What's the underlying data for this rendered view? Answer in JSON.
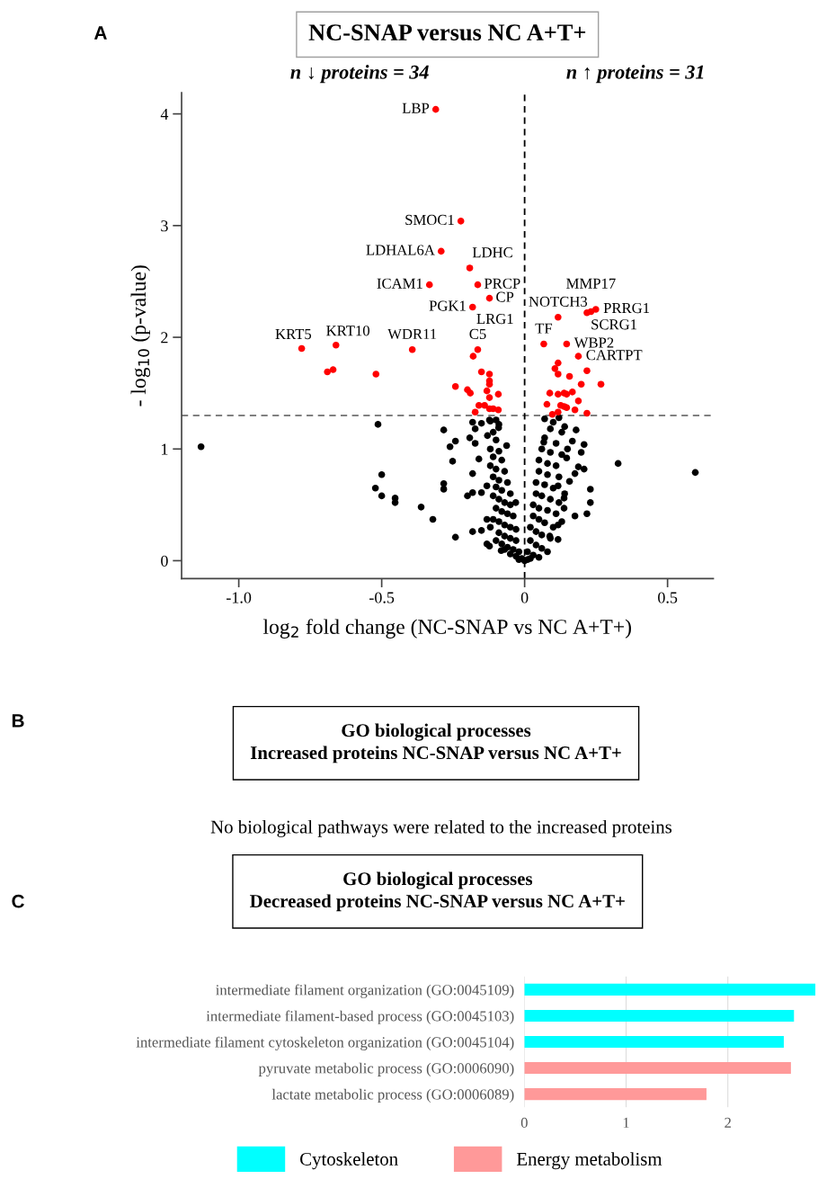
{
  "chart_data": [
    {
      "type": "scatter",
      "title": "NC-SNAP versus NC A+T+",
      "xlabel": "log$_{2}$ fold change (NC-SNAP vs NC A+T+)",
      "ylabel": "- log$_{10}$ (p-value)",
      "xlim": [
        -1.2,
        0.66
      ],
      "ylim": [
        -0.16,
        4.19
      ],
      "xticks": [
        {
          "value": -1,
          "label": "-1.0"
        },
        {
          "value": -0.5,
          "label": "-0.5"
        },
        0,
        0.5
      ],
      "yticks": [
        0,
        1,
        2,
        3,
        4
      ],
      "marker": "circle",
      "ref_lines": [
        {
          "axis": "y",
          "value": 1.3,
          "color": "#808080",
          "line_style": "dashed"
        },
        {
          "axis": "x",
          "value": 0,
          "color": "#000000",
          "line_style": "dashed"
        }
      ],
      "series": [
        {
          "color": "#000000",
          "x": [
            -1.132,
            -0.513,
            -0.5,
            -0.522,
            -0.5,
            -0.453,
            -0.453,
            -0.362,
            -0.321,
            -0.283,
            -0.261,
            -0.242,
            -0.252,
            -0.283,
            -0.283,
            -0.242,
            -0.182,
            -0.173,
            -0.192,
            -0.173,
            -0.16,
            -0.182,
            -0.2,
            -0.182,
            -0.151,
            -0.182,
            -0.151,
            -0.132,
            -0.123,
            -0.082,
            -0.063,
            -0.091,
            -0.123,
            -0.151,
            -0.132,
            -0.132,
            -0.031,
            0.327,
            0.597,
            0.23,
            0.23,
            0.218,
            0.176,
            0.117,
            0.088,
            0.208,
            0.198,
            0.208,
            0.176,
            0.188,
            0.18,
            0.167,
            0.067,
            0.147,
            0.138,
            0.138,
            0.157,
            0.117,
            0.117,
            -0.12,
            -0.1,
            -0.09,
            -0.11,
            -0.13,
            -0.1,
            -0.12,
            -0.09,
            -0.11,
            -0.08,
            -0.12,
            -0.1,
            -0.07,
            -0.11,
            -0.09,
            -0.06,
            -0.1,
            -0.08,
            -0.05,
            -0.11,
            -0.09,
            -0.07,
            -0.05,
            -0.1,
            -0.08,
            -0.06,
            -0.04,
            -0.11,
            -0.09,
            -0.07,
            -0.05,
            -0.03,
            -0.09,
            -0.07,
            -0.05,
            -0.03,
            -0.08,
            -0.06,
            -0.04,
            -0.02,
            -0.05,
            -0.03,
            -0.01,
            -0.02,
            0.0,
            -0.07,
            -0.1,
            -0.12,
            0.07,
            0.1,
            0.12,
            0.09,
            0.13,
            0.07,
            0.11,
            0.06,
            0.09,
            0.13,
            0.05,
            0.08,
            0.11,
            0.05,
            0.08,
            0.12,
            0.04,
            0.07,
            0.1,
            0.04,
            0.06,
            0.09,
            0.12,
            0.03,
            0.05,
            0.08,
            0.11,
            0.03,
            0.05,
            0.07,
            0.1,
            0.02,
            0.04,
            0.06,
            0.09,
            0.02,
            0.04,
            0.06,
            0.08,
            0.01,
            0.03,
            0.02,
            0.05,
            0.01,
            0.14,
            0.13,
            0.15,
            0.14
          ],
          "values": [
            1.02,
            1.22,
            0.77,
            0.65,
            0.58,
            0.56,
            0.52,
            0.48,
            0.37,
            1.17,
            1.02,
            1.07,
            0.89,
            0.69,
            0.64,
            0.21,
            1.24,
            1.18,
            1.1,
            1.05,
            0.91,
            0.78,
            0.58,
            0.61,
            0.61,
            0.26,
            0.27,
            0.15,
            0.13,
            0.09,
            1.03,
            1.19,
            1.26,
            1.23,
            0.67,
            0.37,
            0.52,
            0.87,
            0.79,
            0.64,
            0.52,
            0.42,
            0.4,
            0.19,
            0.22,
            1.04,
            0.97,
            0.82,
            0.78,
            0.84,
            1.17,
            1.07,
            1.06,
            0.92,
            0.56,
            0.47,
            0.71,
            0.67,
            0.32,
            1.25,
            1.26,
            1.22,
            1.15,
            1.12,
            1.08,
            1.0,
            0.98,
            0.93,
            0.9,
            0.85,
            0.82,
            0.8,
            0.75,
            0.72,
            0.7,
            0.66,
            0.63,
            0.6,
            0.58,
            0.55,
            0.52,
            0.5,
            0.47,
            0.44,
            0.42,
            0.4,
            0.37,
            0.35,
            0.32,
            0.3,
            0.28,
            0.25,
            0.22,
            0.2,
            0.18,
            0.15,
            0.12,
            0.1,
            0.08,
            0.06,
            0.04,
            0.02,
            0.01,
            0.0,
            0.1,
            0.18,
            0.3,
            1.27,
            1.24,
            1.28,
            1.18,
            1.15,
            1.1,
            1.05,
            1.0,
            0.97,
            0.95,
            0.9,
            0.87,
            0.85,
            0.8,
            0.77,
            0.75,
            0.7,
            0.68,
            0.65,
            0.6,
            0.58,
            0.55,
            0.52,
            0.5,
            0.47,
            0.45,
            0.42,
            0.4,
            0.37,
            0.34,
            0.3,
            0.3,
            0.26,
            0.23,
            0.2,
            0.18,
            0.14,
            0.11,
            0.08,
            0.08,
            0.05,
            0.02,
            0.03,
            0.01,
            0.6,
            0.35,
            1.0,
            1.2
          ]
        },
        {
          "color": "#ff0000",
          "x": [
            -0.311,
            -0.223,
            -0.292,
            -0.192,
            -0.164,
            -0.333,
            -0.123,
            -0.182,
            -0.78,
            -0.66,
            -0.393,
            -0.164,
            -0.18,
            -0.69,
            -0.67,
            -0.52,
            -0.151,
            -0.123,
            -0.123,
            -0.123,
            -0.242,
            -0.2,
            -0.19,
            -0.132,
            -0.092,
            -0.123,
            -0.16,
            -0.14,
            -0.123,
            -0.11,
            -0.092,
            -0.173,
            0.117,
            0.218,
            0.232,
            0.249,
            0.067,
            0.147,
            0.188,
            0.117,
            0.106,
            0.117,
            0.157,
            0.218,
            0.198,
            0.267,
            0.088,
            0.117,
            0.138,
            0.147,
            0.167,
            0.078,
            0.126,
            0.138,
            0.147,
            0.188,
            0.176,
            0.097,
            0.117,
            0.218
          ],
          "values": [
            4.04,
            3.04,
            2.77,
            2.62,
            2.47,
            2.47,
            2.35,
            2.27,
            1.9,
            1.93,
            1.89,
            1.89,
            1.83,
            1.69,
            1.71,
            1.67,
            1.69,
            1.67,
            1.61,
            1.58,
            1.56,
            1.53,
            1.5,
            1.52,
            1.49,
            1.46,
            1.39,
            1.39,
            1.36,
            1.36,
            1.35,
            1.33,
            2.18,
            2.22,
            2.23,
            2.25,
            1.94,
            1.94,
            1.83,
            1.77,
            1.72,
            1.67,
            1.65,
            1.7,
            1.58,
            1.58,
            1.5,
            1.49,
            1.5,
            1.49,
            1.51,
            1.4,
            1.39,
            1.38,
            1.37,
            1.43,
            1.35,
            1.31,
            1.33,
            1.32
          ]
        }
      ],
      "annotations": [
        "A",
        "n ↓ proteins = 34",
        "n ↑ proteins = 31",
        {
          "text": "LBP",
          "x": -0.311,
          "y": 4.04
        },
        {
          "text": "SMOC1",
          "x": -0.223,
          "y": 3.04
        },
        {
          "text": "LDHAL6A",
          "x": -0.292,
          "y": 2.77
        },
        {
          "text": "LDHC",
          "x": -0.192,
          "y": 2.62
        },
        {
          "text": "PRCP",
          "x": -0.164,
          "y": 2.47
        },
        {
          "text": "ICAM1",
          "x": -0.333,
          "y": 2.47
        },
        {
          "text": "CP",
          "x": -0.123,
          "y": 2.35
        },
        {
          "text": "PGK1",
          "x": -0.182,
          "y": 2.27
        },
        {
          "text": "LRG1",
          "x": -0.182,
          "y": 2.27
        },
        {
          "text": "KRT5",
          "x": -0.78,
          "y": 1.9
        },
        {
          "text": "KRT10",
          "x": -0.66,
          "y": 1.93
        },
        {
          "text": "WDR11",
          "x": -0.393,
          "y": 1.89
        },
        {
          "text": "C5",
          "x": -0.164,
          "y": 1.89
        },
        {
          "text": "NOTCH3",
          "x": 0.117,
          "y": 2.18
        },
        {
          "text": "MMP17",
          "x": 0.232,
          "y": 2.23
        },
        {
          "text": "PRRG1",
          "x": 0.249,
          "y": 2.25
        },
        {
          "text": "SCRG1",
          "x": 0.218,
          "y": 2.22
        },
        {
          "text": "TF",
          "x": 0.067,
          "y": 1.94
        },
        {
          "text": "WBP2",
          "x": 0.147,
          "y": 1.94
        },
        {
          "text": "CARTPT",
          "x": 0.188,
          "y": 1.83
        }
      ]
    },
    {
      "type": "other",
      "title": "GO biological processes\nIncreased proteins NC-SNAP versus NC A+T+",
      "annotations": [
        "B",
        "No biological pathways were related to the increased proteins"
      ]
    },
    {
      "type": "bar",
      "orientation": "horizontal",
      "title": "GO biological processes\nDecreased proteins NC-SNAP versus NC A+T+",
      "categories": [
        "intermediate filament organization (GO:0045109)",
        "intermediate filament-based process (GO:0045103)",
        "intermediate filament cytoskeleton organization (GO:0045104)",
        "pyruvate metabolic process (GO:0006090)",
        "lactate metabolic process (GO:0006089)"
      ],
      "series": [
        {
          "name": "Cytoskeleton",
          "color": "#00ffff",
          "values": [
            2.86,
            2.65,
            2.55,
            null,
            null
          ]
        },
        {
          "name": "Energy metabolism",
          "color": "#ff9999",
          "values": [
            null,
            null,
            null,
            2.62,
            1.79
          ]
        }
      ],
      "xlim": [
        0,
        2.87
      ],
      "xticks": [
        0,
        1,
        2
      ],
      "grid": "x",
      "legend": "bottom",
      "annotations": [
        "C"
      ]
    }
  ]
}
